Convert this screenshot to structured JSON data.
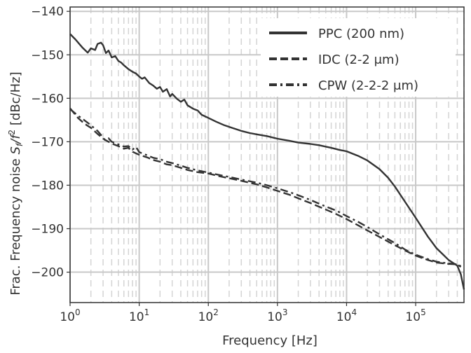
{
  "chart_data": {
    "type": "line",
    "xscale": "log",
    "xlabel": "Frequency [Hz]",
    "ylabel": "Frac. Frequency noise S_f/f^2 [dBc/Hz]",
    "xlim": [
      1,
      500000
    ],
    "ylim": [
      -207,
      -139
    ],
    "x_tick_labels": [
      {
        "x": 1,
        "base": "10",
        "exp": "0"
      },
      {
        "x": 10,
        "base": "10",
        "exp": "1"
      },
      {
        "x": 100,
        "base": "10",
        "exp": "2"
      },
      {
        "x": 1000,
        "base": "10",
        "exp": "3"
      },
      {
        "x": 10000,
        "base": "10",
        "exp": "4"
      },
      {
        "x": 100000,
        "base": "10",
        "exp": "5"
      }
    ],
    "y_ticks": [
      -140,
      -150,
      -160,
      -170,
      -180,
      -190,
      -200
    ],
    "y_tick_labels": [
      "−140",
      "−150",
      "−160",
      "−170",
      "−180",
      "−190",
      "−200"
    ],
    "grid": true,
    "legend_position": "top-right",
    "series": [
      {
        "name": "PPC (200 nm)",
        "legend_label": "PPC (200 nm)",
        "style": "solid",
        "color": "#333333",
        "points": [
          [
            1,
            -145.2
          ],
          [
            1.2,
            -146.5
          ],
          [
            1.5,
            -148.3
          ],
          [
            1.8,
            -149.5
          ],
          [
            2,
            -148.5
          ],
          [
            2.3,
            -148.9
          ],
          [
            2.5,
            -147.5
          ],
          [
            2.8,
            -147.2
          ],
          [
            3,
            -147.8
          ],
          [
            3.3,
            -149.6
          ],
          [
            3.6,
            -149.0
          ],
          [
            4,
            -150.6
          ],
          [
            4.5,
            -150.3
          ],
          [
            5,
            -151.4
          ],
          [
            5.5,
            -151.8
          ],
          [
            6,
            -152.4
          ],
          [
            7,
            -153.3
          ],
          [
            8,
            -153.9
          ],
          [
            9,
            -154.3
          ],
          [
            10,
            -155.0
          ],
          [
            11,
            -155.5
          ],
          [
            12,
            -155.2
          ],
          [
            14,
            -156.5
          ],
          [
            16,
            -157.1
          ],
          [
            18,
            -157.8
          ],
          [
            20,
            -157.4
          ],
          [
            22,
            -158.5
          ],
          [
            25,
            -157.9
          ],
          [
            28,
            -159.6
          ],
          [
            30,
            -159.0
          ],
          [
            35,
            -160.1
          ],
          [
            40,
            -160.8
          ],
          [
            45,
            -160.3
          ],
          [
            50,
            -161.6
          ],
          [
            60,
            -162.4
          ],
          [
            70,
            -162.8
          ],
          [
            80,
            -163.8
          ],
          [
            100,
            -164.5
          ],
          [
            130,
            -165.4
          ],
          [
            170,
            -166.2
          ],
          [
            220,
            -166.8
          ],
          [
            300,
            -167.5
          ],
          [
            400,
            -168.0
          ],
          [
            500,
            -168.3
          ],
          [
            700,
            -168.7
          ],
          [
            1000,
            -169.3
          ],
          [
            1500,
            -169.8
          ],
          [
            2000,
            -170.2
          ],
          [
            3000,
            -170.5
          ],
          [
            4000,
            -170.8
          ],
          [
            6000,
            -171.4
          ],
          [
            8000,
            -171.9
          ],
          [
            10000,
            -172.2
          ],
          [
            15000,
            -173.3
          ],
          [
            20000,
            -174.3
          ],
          [
            30000,
            -176.3
          ],
          [
            40000,
            -178.3
          ],
          [
            50000,
            -180.3
          ],
          [
            70000,
            -183.8
          ],
          [
            100000,
            -187.5
          ],
          [
            150000,
            -191.8
          ],
          [
            200000,
            -194.5
          ],
          [
            300000,
            -197.2
          ],
          [
            400000,
            -198.5
          ],
          [
            450000,
            -200.5
          ],
          [
            500000,
            -204.0
          ]
        ]
      },
      {
        "name": "IDC (2-2 μm)",
        "legend_label": "IDC (2-2 μm)",
        "style": "dashed",
        "color": "#333333",
        "points": [
          [
            1,
            -162.3
          ],
          [
            1.3,
            -164.5
          ],
          [
            1.6,
            -165.8
          ],
          [
            2,
            -166.8
          ],
          [
            2.5,
            -168.2
          ],
          [
            3,
            -169.3
          ],
          [
            3.5,
            -169.9
          ],
          [
            4,
            -170.4
          ],
          [
            5,
            -171.0
          ],
          [
            6,
            -171.6
          ],
          [
            7,
            -171.4
          ],
          [
            8,
            -172.3
          ],
          [
            10,
            -173.0
          ],
          [
            13,
            -173.6
          ],
          [
            16,
            -174.2
          ],
          [
            20,
            -174.6
          ],
          [
            25,
            -175.2
          ],
          [
            30,
            -175.4
          ],
          [
            40,
            -176.0
          ],
          [
            50,
            -176.5
          ],
          [
            70,
            -177.0
          ],
          [
            100,
            -177.3
          ],
          [
            150,
            -178.0
          ],
          [
            200,
            -178.4
          ],
          [
            300,
            -179.0
          ],
          [
            500,
            -179.8
          ],
          [
            700,
            -180.5
          ],
          [
            1000,
            -181.3
          ],
          [
            1500,
            -182.2
          ],
          [
            2000,
            -183.0
          ],
          [
            3000,
            -184.1
          ],
          [
            5000,
            -185.6
          ],
          [
            7000,
            -186.6
          ],
          [
            10000,
            -187.8
          ],
          [
            15000,
            -189.3
          ],
          [
            20000,
            -190.4
          ],
          [
            30000,
            -191.9
          ],
          [
            50000,
            -193.8
          ],
          [
            70000,
            -195.0
          ],
          [
            100000,
            -196.2
          ],
          [
            150000,
            -197.2
          ],
          [
            200000,
            -197.8
          ],
          [
            300000,
            -198.1
          ],
          [
            400000,
            -198.2
          ],
          [
            450000,
            -198.8
          ]
        ]
      },
      {
        "name": "CPW (2-2-2 μm)",
        "legend_label": "CPW (2-2-2 μm)",
        "style": "dashdot",
        "color": "#333333",
        "points": [
          [
            1,
            -162.5
          ],
          [
            1.3,
            -164.0
          ],
          [
            1.6,
            -165.0
          ],
          [
            2,
            -166.2
          ],
          [
            2.5,
            -167.5
          ],
          [
            3,
            -169.0
          ],
          [
            3.2,
            -169.6
          ],
          [
            3.6,
            -169.2
          ],
          [
            4,
            -170.0
          ],
          [
            5,
            -170.6
          ],
          [
            6,
            -171.1
          ],
          [
            7,
            -171.0
          ],
          [
            8,
            -171.8
          ],
          [
            9,
            -171.2
          ],
          [
            10,
            -172.4
          ],
          [
            13,
            -173.1
          ],
          [
            16,
            -173.7
          ],
          [
            20,
            -174.0
          ],
          [
            25,
            -174.6
          ],
          [
            30,
            -174.9
          ],
          [
            40,
            -175.5
          ],
          [
            50,
            -176.0
          ],
          [
            70,
            -176.6
          ],
          [
            100,
            -177.1
          ],
          [
            150,
            -177.7
          ],
          [
            200,
            -178.1
          ],
          [
            300,
            -178.7
          ],
          [
            500,
            -179.4
          ],
          [
            700,
            -180.0
          ],
          [
            1000,
            -180.7
          ],
          [
            1500,
            -181.6
          ],
          [
            2000,
            -182.3
          ],
          [
            3000,
            -183.4
          ],
          [
            5000,
            -184.9
          ],
          [
            7000,
            -185.8
          ],
          [
            10000,
            -187.1
          ],
          [
            15000,
            -188.5
          ],
          [
            20000,
            -189.6
          ],
          [
            30000,
            -191.3
          ],
          [
            50000,
            -193.3
          ],
          [
            70000,
            -194.8
          ],
          [
            100000,
            -196.0
          ],
          [
            150000,
            -197.0
          ],
          [
            200000,
            -197.6
          ],
          [
            300000,
            -198.0
          ],
          [
            400000,
            -198.2
          ],
          [
            450000,
            -198.6
          ]
        ]
      }
    ]
  }
}
